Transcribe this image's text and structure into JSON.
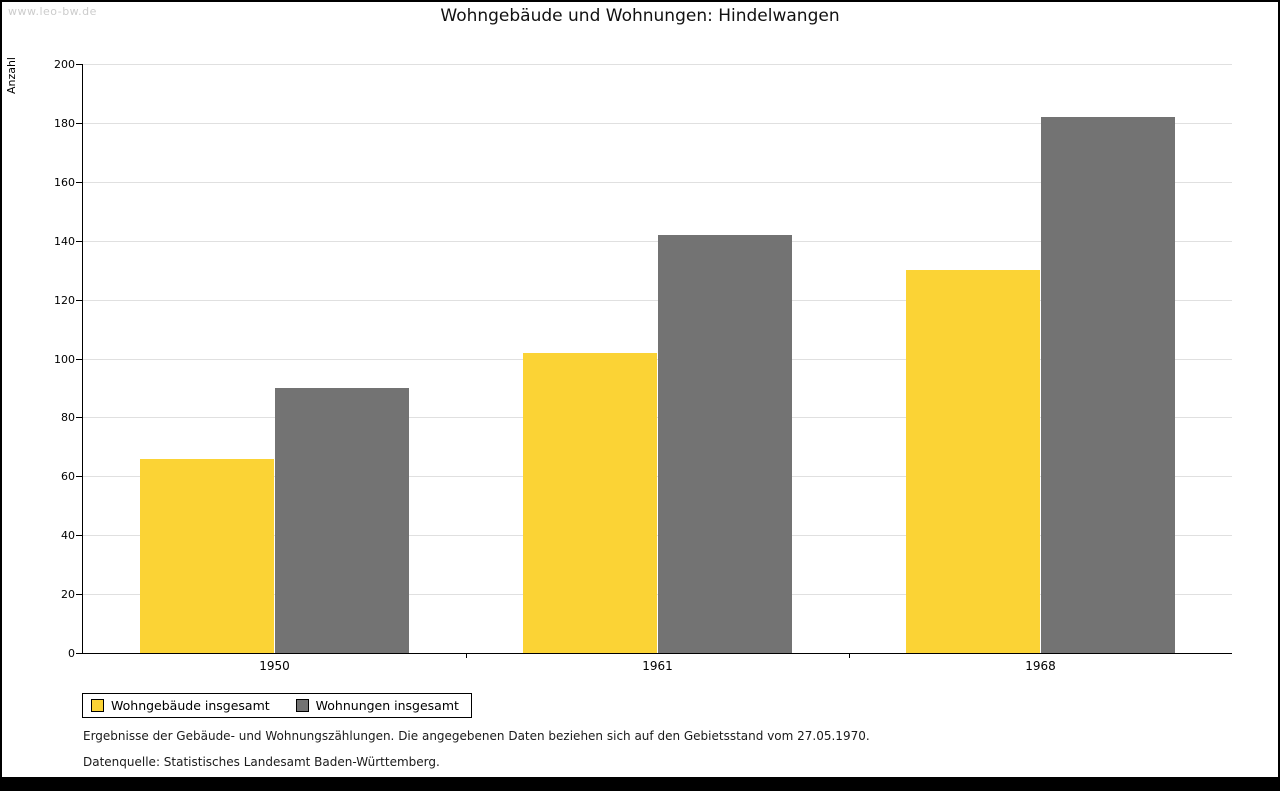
{
  "page": {
    "watermark": "www.leo-bw.de",
    "title": "Wohngebäude und Wohnungen: Hindelwangen",
    "footnote1": "Ergebnisse der Gebäude- und Wohnungszählungen. Die angegebenen Daten beziehen sich auf den Gebietsstand vom 27.05.1970.",
    "footnote2": "Datenquelle: Statistisches Landesamt Baden-Württemberg."
  },
  "chart_data": {
    "type": "bar",
    "title": "Wohngebäude und Wohnungen: Hindelwangen",
    "categories": [
      "1950",
      "1961",
      "1968"
    ],
    "series": [
      {
        "name": "Wohngebäude insgesamt",
        "color": "#FBD335",
        "values": [
          66,
          102,
          130
        ]
      },
      {
        "name": "Wohnungen insgesamt",
        "color": "#737373",
        "values": [
          90,
          142,
          182
        ]
      }
    ],
    "xlabel": "",
    "ylabel": "Anzahl",
    "ylim": [
      0,
      200
    ],
    "ytick_step": 20,
    "grid": true,
    "legend_position": "bottom-left"
  }
}
